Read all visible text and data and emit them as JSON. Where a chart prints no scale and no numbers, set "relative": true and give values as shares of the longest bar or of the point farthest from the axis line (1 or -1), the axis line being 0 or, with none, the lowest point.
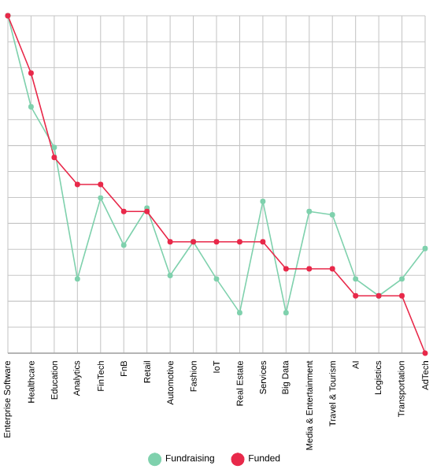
{
  "chart_data": {
    "type": "line",
    "relative": true,
    "grid": true,
    "legend": "bottom",
    "marker": "circle",
    "categories": [
      "Enterprise Software",
      "Healthcare",
      "Education",
      "Analytics",
      "FinTech",
      "FnB",
      "Retail",
      "Automotive",
      "Fashion",
      "IoT",
      "Real Estate",
      "Services",
      "Big Data",
      "Media & Entertainment",
      "Travel & Tourism",
      "AI",
      "Logistics",
      "Transportation",
      "AdTech"
    ],
    "series": [
      {
        "name": "Fundraising",
        "color": "#7fd1ad",
        "values": [
          1.0,
          0.73,
          0.61,
          0.22,
          0.46,
          0.32,
          0.43,
          0.23,
          0.33,
          0.22,
          0.12,
          0.45,
          0.12,
          0.42,
          0.41,
          0.22,
          0.17,
          0.22,
          0.31
        ]
      },
      {
        "name": "Funded",
        "color": "#e8294a",
        "values": [
          1.0,
          0.83,
          0.58,
          0.5,
          0.5,
          0.42,
          0.42,
          0.33,
          0.33,
          0.33,
          0.33,
          0.33,
          0.25,
          0.25,
          0.25,
          0.17,
          0.17,
          0.17,
          0.0
        ]
      }
    ]
  }
}
